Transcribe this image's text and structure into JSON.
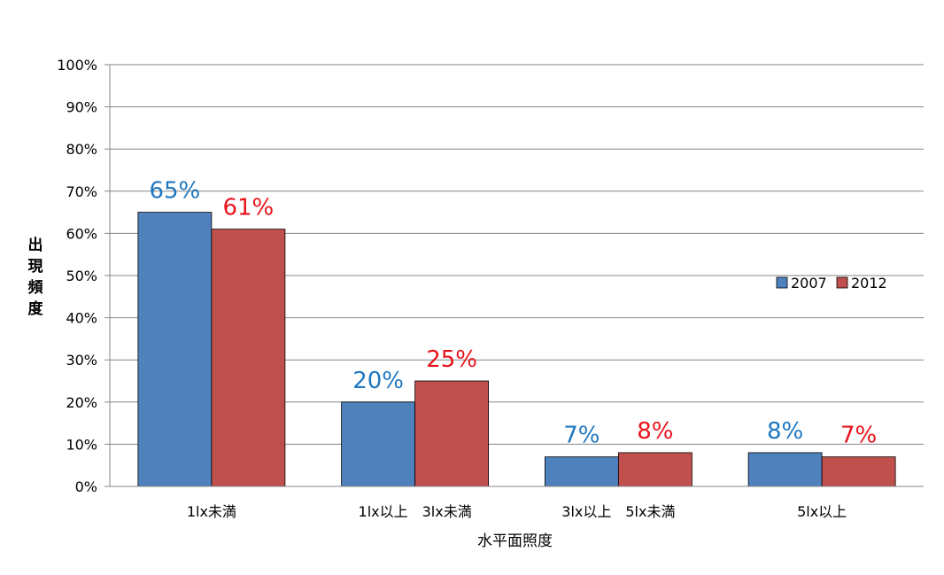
{
  "chart_data": {
    "type": "bar",
    "categories": [
      "1lx未満",
      "1lx以上　3lx未満",
      "3lx以上　5lx未満",
      "5lx以上"
    ],
    "series": [
      {
        "name": "2007",
        "values": [
          65,
          20,
          7,
          8
        ],
        "labels": [
          "65%",
          "20%",
          "7%",
          "8%"
        ],
        "color": "#4F81BD",
        "label_color": "#1F77C0"
      },
      {
        "name": "2012",
        "values": [
          61,
          25,
          8,
          7
        ],
        "labels": [
          "61%",
          "25%",
          "8%",
          "7%"
        ],
        "color": "#C0504D",
        "label_color": "#E8141B"
      }
    ],
    "xlabel": "水平面照度",
    "ylabel": "出現頻度",
    "ylim": [
      0,
      100
    ],
    "yticks": [
      "0%",
      "10%",
      "20%",
      "30%",
      "40%",
      "50%",
      "60%",
      "70%",
      "80%",
      "90%",
      "100%"
    ],
    "grid": true,
    "legend_position": "right"
  }
}
